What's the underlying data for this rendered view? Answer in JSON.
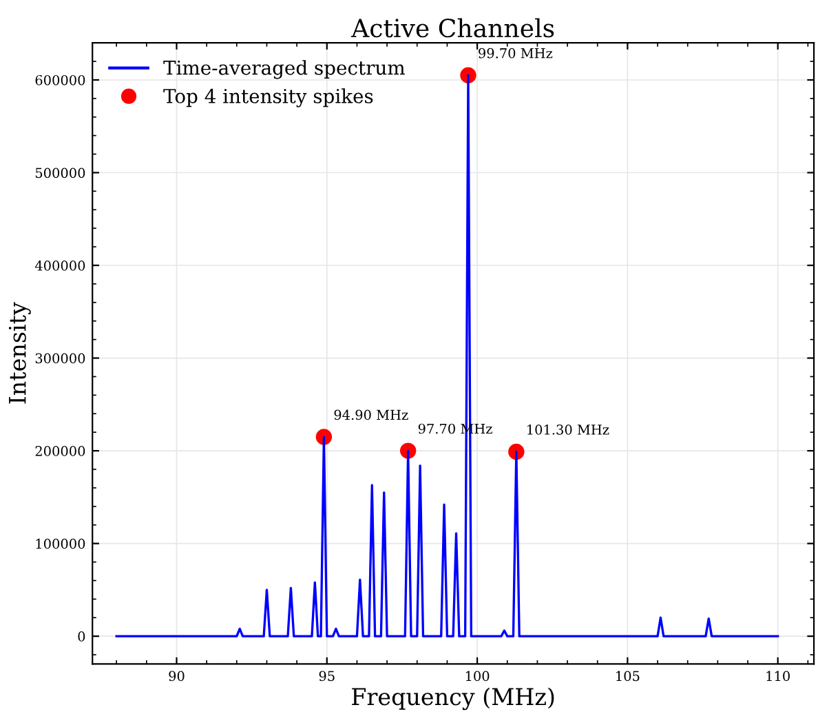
{
  "chart_data": {
    "type": "line",
    "title": "Active Channels",
    "xlabel": "Frequency (MHz)",
    "ylabel": "Intensity",
    "xlim": [
      87.2,
      111.2
    ],
    "ylim": [
      -30000,
      640000
    ],
    "xticks": [
      90,
      95,
      100,
      105,
      110
    ],
    "yticks": [
      0,
      100000,
      200000,
      300000,
      400000,
      500000,
      600000
    ],
    "grid": true,
    "legend": "top left",
    "series": [
      {
        "name": "Time-averaged spectrum",
        "color": "#0000ff",
        "marker": "none",
        "x": [
          88,
          92.0,
          92.1,
          92.2,
          92.9,
          93.0,
          93.1,
          93.7,
          93.8,
          93.9,
          94.5,
          94.6,
          94.7,
          94.8,
          94.9,
          95.0,
          95.2,
          95.3,
          95.4,
          96.0,
          96.1,
          96.2,
          96.4,
          96.5,
          96.6,
          96.8,
          96.9,
          97.0,
          97.6,
          97.7,
          97.8,
          98.0,
          98.1,
          98.2,
          98.8,
          98.9,
          99.0,
          99.2,
          99.3,
          99.4,
          99.6,
          99.7,
          99.8,
          100.8,
          100.9,
          101.0,
          101.2,
          101.3,
          101.4,
          106.0,
          106.1,
          106.2,
          107.6,
          107.7,
          107.8,
          110
        ],
        "values": [
          0,
          0,
          8000,
          0,
          0,
          50000,
          0,
          0,
          52000,
          0,
          0,
          58000,
          0,
          0,
          215000,
          0,
          0,
          8000,
          0,
          0,
          61000,
          0,
          0,
          163000,
          0,
          0,
          155000,
          0,
          0,
          200000,
          0,
          0,
          184000,
          0,
          0,
          142000,
          0,
          0,
          111000,
          0,
          0,
          605000,
          0,
          0,
          6000,
          0,
          0,
          199000,
          0,
          0,
          20000,
          0,
          0,
          19000,
          0,
          0
        ]
      },
      {
        "name": "Top 4 intensity spikes",
        "color": "#ff0000",
        "type": "scatter",
        "marker": "circle",
        "x": [
          94.9,
          97.7,
          99.7,
          101.3
        ],
        "values": [
          215000,
          200000,
          605000,
          199000
        ]
      }
    ],
    "annotations": [
      {
        "text": "94.90 MHz",
        "x": 94.9,
        "y": 215000
      },
      {
        "text": "97.70 MHz",
        "x": 97.7,
        "y": 200000
      },
      {
        "text": "99.70 MHz",
        "x": 99.7,
        "y": 605000
      },
      {
        "text": "101.30 MHz",
        "x": 101.3,
        "y": 199000
      }
    ]
  }
}
